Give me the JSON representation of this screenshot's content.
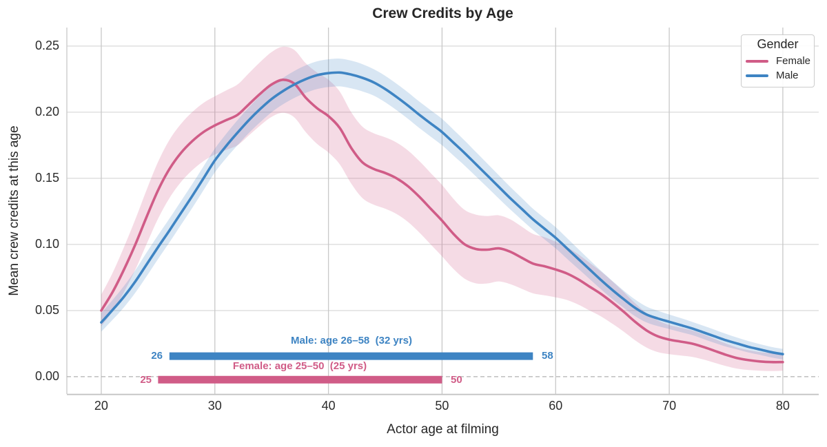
{
  "title": "Crew Credits by Age",
  "legend": {
    "title": "Gender",
    "entries": [
      {
        "label": "Female"
      },
      {
        "label": "Male"
      }
    ]
  },
  "chart_data": {
    "type": "line",
    "title": "Crew Credits by Age",
    "xlabel": "Actor age at filming",
    "ylabel": "Mean crew credits at this age",
    "x": [
      20,
      21,
      22,
      23,
      24,
      25,
      26,
      27,
      28,
      29,
      30,
      31,
      32,
      33,
      34,
      35,
      36,
      37,
      38,
      39,
      40,
      41,
      42,
      43,
      44,
      45,
      46,
      47,
      48,
      49,
      50,
      51,
      52,
      53,
      54,
      55,
      56,
      57,
      58,
      59,
      60,
      61,
      62,
      63,
      64,
      65,
      66,
      67,
      68,
      69,
      70,
      71,
      72,
      73,
      74,
      75,
      76,
      77,
      78,
      79,
      80
    ],
    "xlim": [
      16.97,
      83.16
    ],
    "ylim": [
      -0.0131,
      0.264
    ],
    "xticks": [
      20,
      30,
      40,
      50,
      60,
      70,
      80
    ],
    "yticks": [
      {
        "value": 0.0,
        "label": "0.00"
      },
      {
        "value": 0.05,
        "label": "0.05"
      },
      {
        "value": 0.1,
        "label": "0.10"
      },
      {
        "value": 0.15,
        "label": "0.15"
      },
      {
        "value": 0.2,
        "label": "0.20"
      },
      {
        "value": 0.25,
        "label": "0.25"
      }
    ],
    "grid": true,
    "legend_position": "upper right",
    "zero_line": {
      "y": 0.0,
      "style": "dashed",
      "color": "#b0b0b0"
    },
    "series": [
      {
        "name": "Female",
        "color": "#d05c87",
        "band_opacity": 0.22,
        "mean": [
          0.05,
          0.064,
          0.081,
          0.1,
          0.121,
          0.141,
          0.157,
          0.169,
          0.178,
          0.185,
          0.19,
          0.194,
          0.198,
          0.206,
          0.214,
          0.221,
          0.2245,
          0.2215,
          0.211,
          0.203,
          0.197,
          0.188,
          0.173,
          0.162,
          0.157,
          0.154,
          0.15,
          0.144,
          0.136,
          0.127,
          0.118,
          0.108,
          0.1,
          0.0965,
          0.096,
          0.097,
          0.0945,
          0.09,
          0.0855,
          0.0835,
          0.081,
          0.078,
          0.0735,
          0.068,
          0.0625,
          0.056,
          0.049,
          0.0415,
          0.035,
          0.0305,
          0.028,
          0.0265,
          0.025,
          0.0225,
          0.0195,
          0.0165,
          0.014,
          0.0125,
          0.0115,
          0.011,
          0.011
        ],
        "ci_halfwidth": [
          0.012,
          0.0145,
          0.017,
          0.019,
          0.0205,
          0.0215,
          0.022,
          0.022,
          0.022,
          0.022,
          0.022,
          0.0225,
          0.023,
          0.0235,
          0.024,
          0.0245,
          0.025,
          0.0255,
          0.026,
          0.027,
          0.0275,
          0.0275,
          0.027,
          0.027,
          0.027,
          0.027,
          0.027,
          0.027,
          0.027,
          0.027,
          0.027,
          0.0265,
          0.026,
          0.026,
          0.0255,
          0.025,
          0.0245,
          0.0235,
          0.0225,
          0.022,
          0.021,
          0.02,
          0.019,
          0.018,
          0.017,
          0.016,
          0.015,
          0.014,
          0.013,
          0.012,
          0.011,
          0.0105,
          0.01,
          0.0095,
          0.009,
          0.0085,
          0.008,
          0.0075,
          0.007,
          0.0068,
          0.0065
        ]
      },
      {
        "name": "Male",
        "color": "#3e84c3",
        "band_opacity": 0.2,
        "mean": [
          0.041,
          0.0505,
          0.0605,
          0.072,
          0.085,
          0.098,
          0.1105,
          0.1235,
          0.1365,
          0.15,
          0.1635,
          0.1745,
          0.1845,
          0.194,
          0.2025,
          0.21,
          0.216,
          0.221,
          0.225,
          0.228,
          0.2295,
          0.23,
          0.2285,
          0.226,
          0.2225,
          0.2175,
          0.2115,
          0.205,
          0.198,
          0.1915,
          0.185,
          0.177,
          0.169,
          0.1605,
          0.152,
          0.1435,
          0.135,
          0.127,
          0.119,
          0.112,
          0.105,
          0.097,
          0.089,
          0.081,
          0.073,
          0.0655,
          0.0585,
          0.052,
          0.047,
          0.044,
          0.0415,
          0.039,
          0.0365,
          0.0335,
          0.0305,
          0.0275,
          0.025,
          0.0225,
          0.0205,
          0.0185,
          0.017
        ],
        "ci_halfwidth": [
          0.007,
          0.0075,
          0.008,
          0.0085,
          0.009,
          0.009,
          0.009,
          0.009,
          0.009,
          0.009,
          0.009,
          0.0092,
          0.0095,
          0.0097,
          0.01,
          0.01,
          0.01,
          0.0102,
          0.0104,
          0.0105,
          0.0105,
          0.0105,
          0.0105,
          0.0103,
          0.01,
          0.01,
          0.01,
          0.01,
          0.01,
          0.01,
          0.01,
          0.0098,
          0.0095,
          0.0092,
          0.009,
          0.0088,
          0.0085,
          0.0083,
          0.008,
          0.008,
          0.008,
          0.0078,
          0.0075,
          0.0072,
          0.007,
          0.0068,
          0.0065,
          0.0063,
          0.006,
          0.0058,
          0.0055,
          0.0053,
          0.005,
          0.005,
          0.005,
          0.0048,
          0.0045,
          0.0043,
          0.004,
          0.004,
          0.004
        ]
      }
    ],
    "annotations": {
      "male_bar": {
        "series": "Male",
        "label": "Male: age 26–58  (32 yrs)",
        "start": 26,
        "end": 58,
        "start_label": "26",
        "end_label": "58",
        "y_value": 0.0155
      },
      "female_bar": {
        "series": "Female",
        "label": "Female: age 25–50  (25 yrs)",
        "start": 25,
        "end": 50,
        "start_label": "25",
        "end_label": "50",
        "y_value": -0.0023
      }
    }
  }
}
